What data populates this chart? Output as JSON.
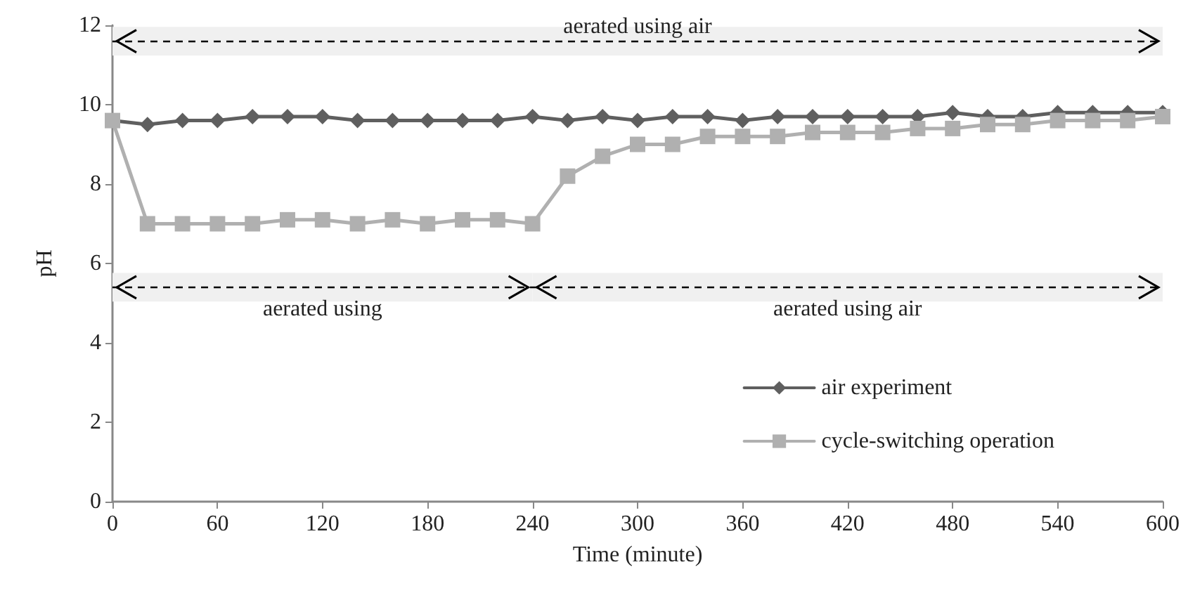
{
  "chart_data": {
    "type": "line",
    "xlabel": "Time (minute)",
    "ylabel": "pH",
    "x": [
      0,
      20,
      40,
      60,
      80,
      100,
      120,
      140,
      160,
      180,
      200,
      220,
      240,
      260,
      280,
      300,
      320,
      340,
      360,
      380,
      400,
      420,
      440,
      460,
      480,
      500,
      520,
      540,
      560,
      580,
      600
    ],
    "xlim": [
      0,
      600
    ],
    "xticks": [
      0,
      60,
      120,
      180,
      240,
      300,
      360,
      420,
      480,
      540,
      600
    ],
    "ylim": [
      0,
      12
    ],
    "yticks": [
      0,
      2,
      4,
      6,
      8,
      10,
      12
    ],
    "grid": false,
    "legend": "bottom right",
    "series": [
      {
        "name": "air experiment",
        "color": "#5f5f5f",
        "marker": "diamond",
        "values": [
          9.6,
          9.5,
          9.6,
          9.6,
          9.7,
          9.7,
          9.7,
          9.6,
          9.6,
          9.6,
          9.6,
          9.6,
          9.7,
          9.6,
          9.7,
          9.6,
          9.7,
          9.7,
          9.6,
          9.7,
          9.7,
          9.7,
          9.7,
          9.7,
          9.8,
          9.7,
          9.7,
          9.8,
          9.8,
          9.8,
          9.8
        ]
      },
      {
        "name": "cycle-switching operation",
        "color": "#b0b0b0",
        "marker": "square",
        "values": [
          9.6,
          7.0,
          7.0,
          7.0,
          7.0,
          7.1,
          7.1,
          7.0,
          7.1,
          7.0,
          7.1,
          7.1,
          7.0,
          8.2,
          8.7,
          9.0,
          9.0,
          9.2,
          9.2,
          9.2,
          9.3,
          9.3,
          9.3,
          9.4,
          9.4,
          9.5,
          9.5,
          9.6,
          9.6,
          9.6,
          9.7
        ]
      }
    ],
    "ref_lines": [
      {
        "axis": "y",
        "value": 11.6,
        "line_style": "dashed",
        "color": "#000000"
      },
      {
        "axis": "y",
        "value": 5.4,
        "line_style": "dashed",
        "color": "#000000"
      }
    ],
    "bands": [
      {
        "axis": "x",
        "from": 0,
        "to": 600,
        "label": "aerated using air",
        "color": "#f0f0f0"
      },
      {
        "axis": "x",
        "from": 0,
        "to": 240,
        "label": "aerated using",
        "color": "#f0f0f0"
      },
      {
        "axis": "x",
        "from": 240,
        "to": 600,
        "label": "aerated using air",
        "color": "#f0f0f0"
      }
    ]
  }
}
